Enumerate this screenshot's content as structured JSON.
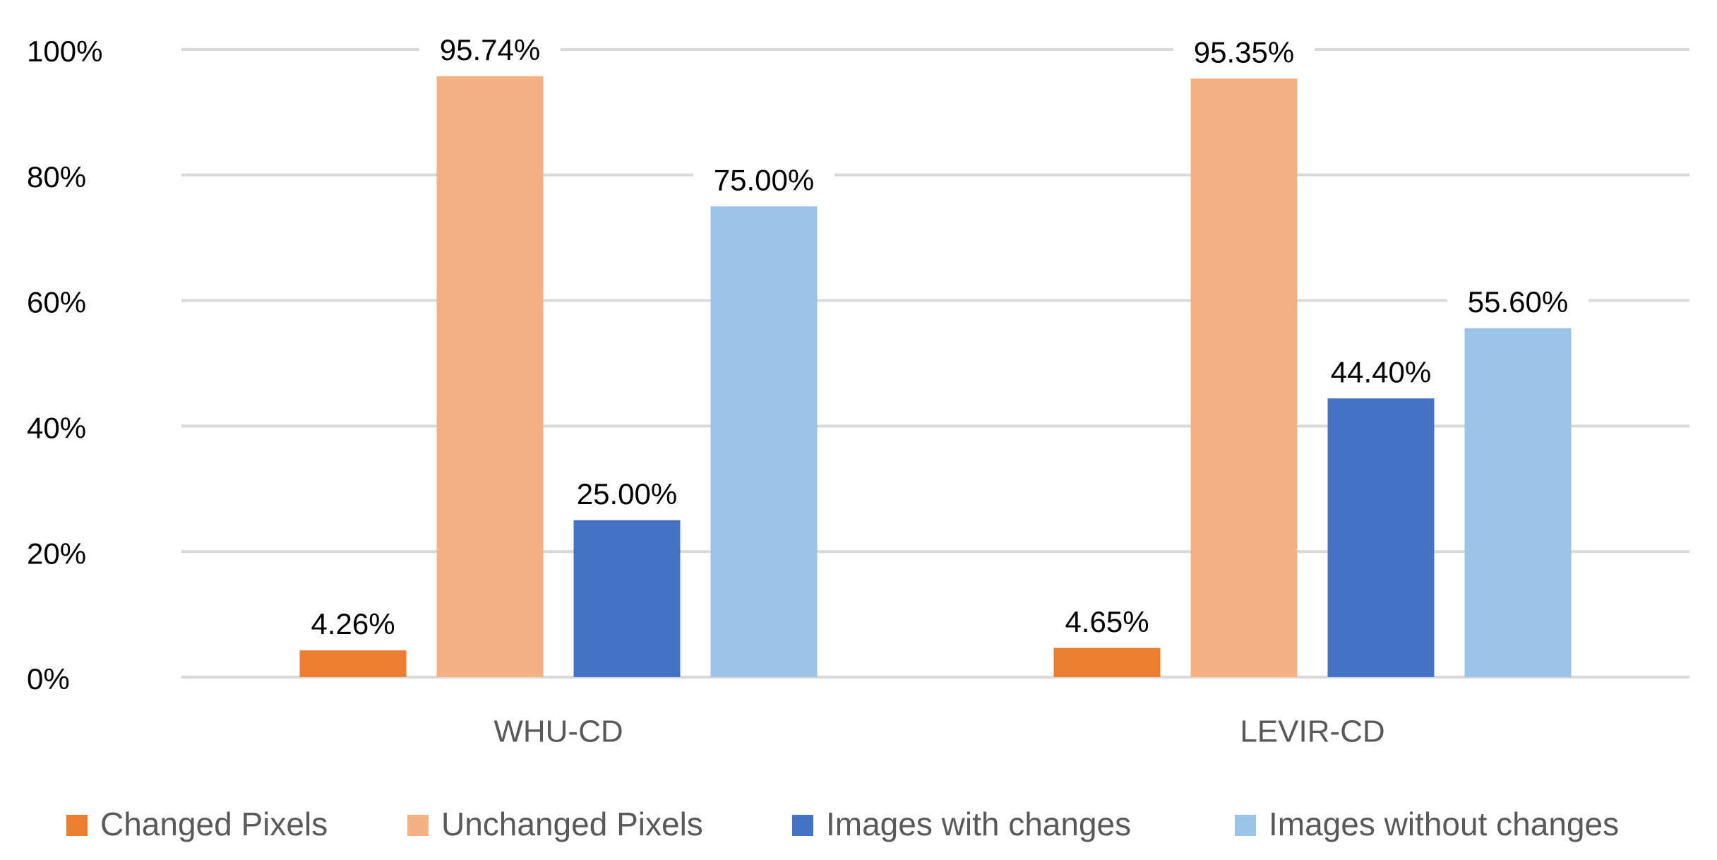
{
  "chart_data": {
    "type": "bar",
    "categories": [
      "WHU-CD",
      "LEVIR-CD"
    ],
    "series": [
      {
        "name": "Changed Pixels",
        "color": "#ed7d31",
        "values": [
          4.26,
          4.65
        ],
        "value_labels": [
          "4.26%",
          "4.65%"
        ]
      },
      {
        "name": "Unchanged Pixels",
        "color": "#f4b183",
        "values": [
          95.74,
          95.35
        ],
        "value_labels": [
          "95.74%",
          "95.35%"
        ]
      },
      {
        "name": "Images with changes",
        "color": "#4472c4",
        "values": [
          25.0,
          44.4
        ],
        "value_labels": [
          "25.00%",
          "44.40%"
        ]
      },
      {
        "name": "Images without changes",
        "color": "#9dc3e6",
        "values": [
          75.0,
          55.6
        ],
        "value_labels": [
          "75.00%",
          "55.60%"
        ]
      }
    ],
    "ylim": [
      0,
      100
    ],
    "yticks": [
      {
        "value": 0,
        "label": "0%"
      },
      {
        "value": 20,
        "label": "20%"
      },
      {
        "value": 40,
        "label": "40%"
      },
      {
        "value": 60,
        "label": "60%"
      },
      {
        "value": 80,
        "label": "80%"
      },
      {
        "value": 100,
        "label": "100%"
      }
    ],
    "grid": true,
    "legend": "bottom"
  }
}
